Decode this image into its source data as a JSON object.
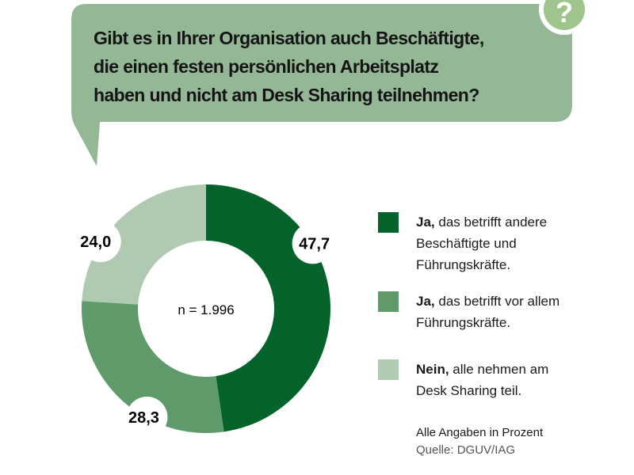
{
  "question": {
    "lines": [
      "Gibt es in Ihrer Organisation auch Beschäftigte,",
      "die einen festen persönlichen Arbeitsplatz",
      "haben und nicht am Desk Sharing teilnehmen?"
    ],
    "icon": "question-mark-icon",
    "bubble_color": "#94b896"
  },
  "chart_data": {
    "type": "pie",
    "variant": "donut",
    "center_label": "n = 1.996",
    "slices": [
      {
        "label_bold": "Ja,",
        "label_rest": "das betrifft andere Beschäftigte und Führungskräfte.",
        "value": 47.7,
        "value_label": "47,7",
        "color": "#03632a"
      },
      {
        "label_bold": "Ja,",
        "label_rest": "das betrifft vor allem Führungskräfte.",
        "value": 28.3,
        "value_label": "28,3",
        "color": "#5e9a6a"
      },
      {
        "label_bold": "Nein,",
        "label_rest": "alle nehmen am Desk Sharing teil.",
        "value": 24.0,
        "value_label": "24,0",
        "color": "#afcab1"
      }
    ],
    "legend_placement": "right"
  },
  "legend": {
    "items": [
      {
        "bold": "Ja,",
        "lines": [
          "das betrifft andere",
          "Beschäftigte und",
          "Führungskräfte."
        ]
      },
      {
        "bold": "Ja,",
        "lines": [
          "das betrifft vor allem",
          "Führungskräfte."
        ]
      },
      {
        "bold": "Nein,",
        "lines": [
          "alle nehmen am",
          "Desk Sharing teil."
        ]
      }
    ]
  },
  "footer": {
    "unit_note": "Alle Angaben in Prozent",
    "source": "Quelle: DGUV/IAG"
  }
}
